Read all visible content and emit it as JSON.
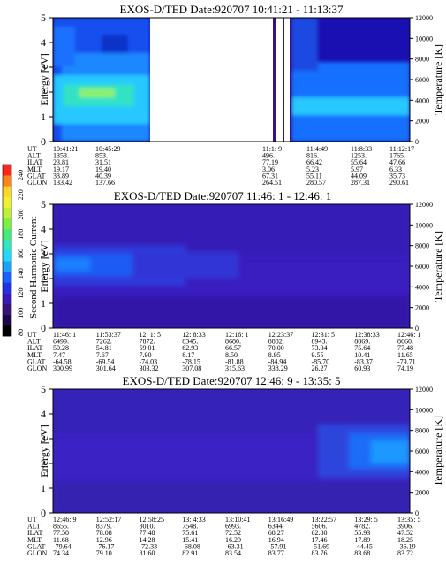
{
  "chart_data": [
    {
      "type": "heatmap",
      "title": "EXOS-D/TED   Date:920707  10:41:21 - 11:13:37",
      "ylabel": "Energy [eV]",
      "y2label": "Temperature [K]",
      "ylim": [
        0,
        5
      ],
      "y2lim": [
        0,
        12000
      ],
      "yticks": [
        "0",
        "1",
        "2",
        "3",
        "4",
        "5"
      ],
      "y2ticks": [
        "0",
        "2000",
        "4000",
        "6000",
        "8000",
        "10000",
        "12000"
      ],
      "row_labels": [
        "UT",
        "ALT",
        "ILAT",
        "MLT",
        "GLAT",
        "GLON"
      ],
      "columns": [
        [
          "10:41:21",
          "1353.",
          "23.81",
          "19.17",
          "33.89",
          "133.42"
        ],
        [
          "10:45:29",
          "853.",
          "31.51",
          "19.40",
          "40.39",
          "137.66"
        ],
        [
          "11:1: 9",
          "496.",
          "77.19",
          "3.06",
          "67.31",
          "264.51"
        ],
        [
          "11:4:49",
          "816.",
          "66.42",
          "5.23",
          "55.11",
          "280.57"
        ],
        [
          "11:8:33",
          "1253.",
          "55.64",
          "5.97",
          "44.09",
          "287.31"
        ],
        [
          "11:12:17",
          "1765.",
          "47.66",
          "6.33",
          "35.73",
          "290.61"
        ]
      ],
      "data_gaps": [
        [
          "10:49:05",
          "11:00:30"
        ],
        [
          "11:01:15",
          "11:01:40"
        ],
        [
          "11:02:05",
          "11:02:25"
        ]
      ]
    },
    {
      "type": "heatmap",
      "title": "EXOS-D/TED   Date:920707  11:46: 1 - 12:46: 1",
      "ylabel": "Energy [eV]",
      "y2label": "Temperature [K]",
      "ylim": [
        0,
        5
      ],
      "y2lim": [
        0,
        12000
      ],
      "yticks": [
        "0",
        "1",
        "2",
        "3",
        "4",
        "5"
      ],
      "y2ticks": [
        "0",
        "2000",
        "4000",
        "6000",
        "8000",
        "10000",
        "12000"
      ],
      "row_labels": [
        "UT",
        "ALT",
        "ILAT",
        "MLT",
        "GLAT",
        "GLON"
      ],
      "columns": [
        [
          "11:46: 1",
          "6499.",
          "50.28",
          "7.47",
          "-64.58",
          "300.99"
        ],
        [
          "11:53:37",
          "7262.",
          "54.81",
          "7.67",
          "-69.54",
          "301.64"
        ],
        [
          "12: 1: 5",
          "7872.",
          "59.01",
          "7.90",
          "-74.03",
          "303.32"
        ],
        [
          "12: 8:33",
          "8345.",
          "62.93",
          "8.17",
          "-78.15",
          "307.08"
        ],
        [
          "12:16: 1",
          "8680.",
          "66.57",
          "8.50",
          "-81.88",
          "315.63"
        ],
        [
          "12:23:37",
          "8882.",
          "70.00",
          "8.95",
          "-84.94",
          "338.29"
        ],
        [
          "12:31: 5",
          "8943.",
          "73.04",
          "9.55",
          "-85.70",
          "26.27"
        ],
        [
          "12:38:33",
          "8869.",
          "75.64",
          "10.41",
          "-83.37",
          "60.93"
        ],
        [
          "12:46: 1",
          "8660.",
          "77.48",
          "11.65",
          "-79.71",
          "74.19"
        ]
      ]
    },
    {
      "type": "heatmap",
      "title": "EXOS-D/TED   Date:920707  12:46: 9 - 13:35: 5",
      "ylabel": "Energy [eV]",
      "y2label": "Temperature [K]",
      "ylim": [
        0,
        5
      ],
      "y2lim": [
        0,
        12000
      ],
      "yticks": [
        "0",
        "1",
        "2",
        "3",
        "4",
        "5"
      ],
      "y2ticks": [
        "0",
        "2000",
        "4000",
        "6000",
        "8000",
        "10000",
        "12000"
      ],
      "row_labels": [
        "UT",
        "ALT",
        "ILAT",
        "MLT",
        "GLAT",
        "GLON"
      ],
      "columns": [
        [
          "12:46: 9",
          "8655.",
          "77.50",
          "11.68",
          "-79.64",
          "74.34"
        ],
        [
          "12:52:17",
          "8379.",
          "78.08",
          "12.96",
          "-76.17",
          "79.10"
        ],
        [
          "12:58:25",
          "8010.",
          "77.48",
          "14.28",
          "-72.33",
          "81.60"
        ],
        [
          "13: 4:33",
          "7548.",
          "75.61",
          "15.41",
          "-68.08",
          "82.91"
        ],
        [
          "13:10:41",
          "6993.",
          "72.52",
          "16.29",
          "-63.31",
          "83.54"
        ],
        [
          "13:16:49",
          "6344.",
          "68.27",
          "16.94",
          "-57.91",
          "83.77"
        ],
        [
          "13:22:57",
          "5606.",
          "62.80",
          "17.46",
          "-51.69",
          "83.76"
        ],
        [
          "13:29: 5",
          "4782.",
          "55.93",
          "17.89",
          "-44.45",
          "83.68"
        ],
        [
          "13:35: 5",
          "3906.",
          "47.52",
          "18.25",
          "-36.19",
          "83.72"
        ]
      ]
    }
  ],
  "colorbar": {
    "label": "Second Harmonic Current",
    "range": [
      80,
      240
    ],
    "ticks": [
      "80",
      "100",
      "120",
      "140",
      "160",
      "180",
      "200",
      "220",
      "240"
    ]
  }
}
